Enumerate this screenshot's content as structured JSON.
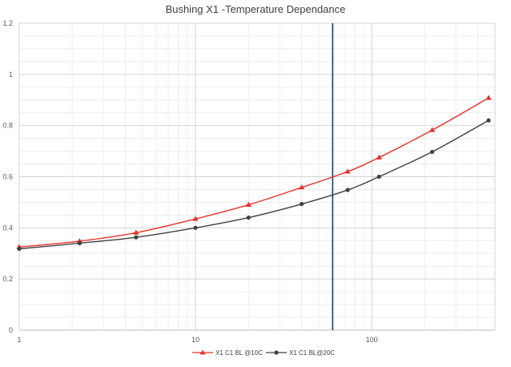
{
  "chart_data": {
    "type": "line",
    "title": "Bushing X1 -Temperature Dependance",
    "xlabel": "",
    "ylabel": "",
    "x_scale": "log",
    "xlim": [
      1,
      500
    ],
    "ylim": [
      0,
      1.2
    ],
    "x_ticks": [
      "1",
      "10",
      "100"
    ],
    "y_ticks": [
      "0",
      "0.2",
      "0.4",
      "0.6",
      "0.8",
      "1",
      "1.2"
    ],
    "grid": true,
    "legend": "bottom",
    "vertical_marker_x": 60,
    "series": [
      {
        "name": "X1 C1 BL @10C",
        "color": "#e8302a",
        "marker": "triangle",
        "x": [
          1,
          2.2,
          4.6,
          10,
          20,
          40,
          73,
          110,
          220,
          460
        ],
        "y": [
          0.325,
          0.348,
          0.381,
          0.435,
          0.49,
          0.558,
          0.62,
          0.675,
          0.782,
          0.908
        ]
      },
      {
        "name": "X1 C1 BL@20C",
        "color": "#404040",
        "marker": "circle",
        "x": [
          1,
          2.2,
          4.6,
          10,
          20,
          40,
          73,
          110,
          220,
          460
        ],
        "y": [
          0.318,
          0.34,
          0.363,
          0.4,
          0.44,
          0.493,
          0.548,
          0.6,
          0.697,
          0.82
        ]
      }
    ]
  }
}
